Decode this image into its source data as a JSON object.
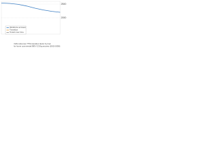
{
  "chart_data": {
    "type": "line",
    "caption": "VHS reference TTW transition factor by fuel for home commercial BEV CO2/g process (2015-2050)",
    "categories": [
      null,
      null,
      null,
      null,
      null,
      null,
      null,
      null
    ],
    "series": [
      {
        "name": "Workforce at travel",
        "color": "#3d7fc4",
        "values": [
          2540,
          2525,
          2490,
          2430,
          2350,
          2285,
          2235,
          2200
        ]
      },
      {
        "name": "Transition",
        "color": "#e8a33c",
        "values": [
          null,
          null,
          null,
          null,
          null,
          null,
          null,
          null
        ]
      },
      {
        "name": "Tenant over time",
        "color": "#8a8a8a",
        "values": [
          null,
          null,
          null,
          null,
          null,
          null,
          null,
          null
        ]
      }
    ],
    "ylim": [
      1400,
      2600
    ],
    "yticks": [
      2000,
      2500
    ],
    "grid": true,
    "legend": "lower-left"
  }
}
